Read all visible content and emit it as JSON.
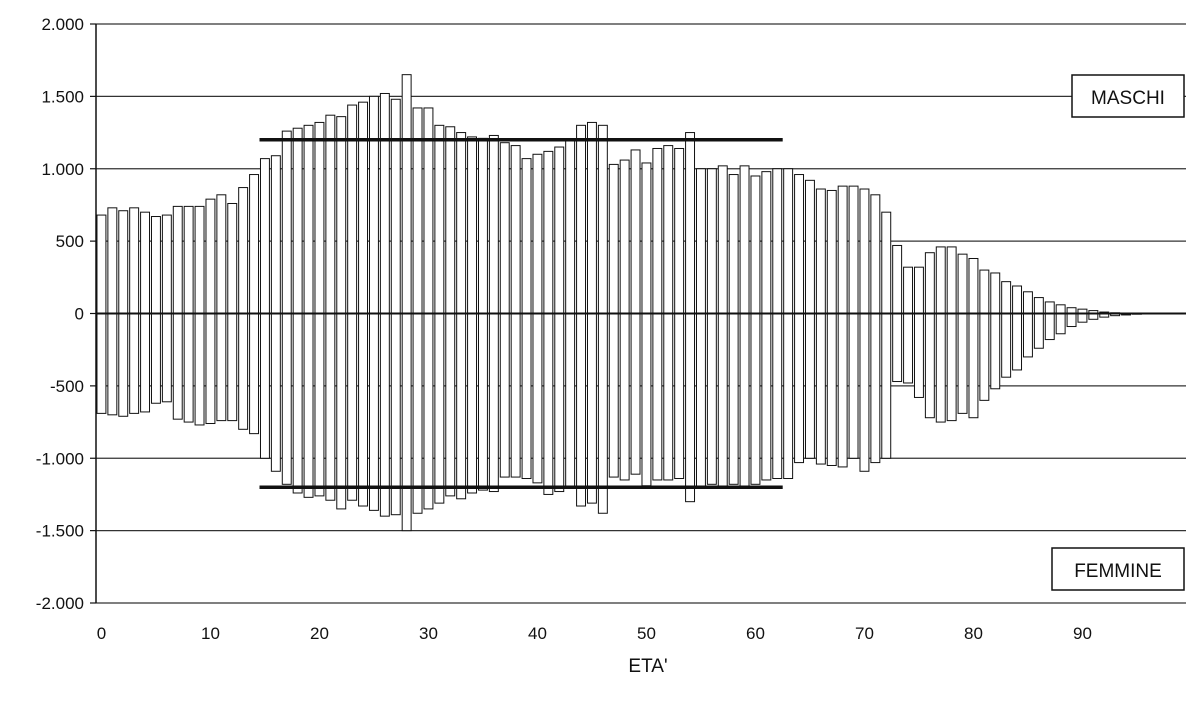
{
  "chart_data": {
    "type": "bar",
    "xlabel": "ETA'",
    "ylabel": "",
    "ylim": [
      -2000,
      2000
    ],
    "xlim": [
      0,
      100
    ],
    "y_ticks": [
      2000,
      1500,
      1000,
      500,
      0,
      -500,
      -1000,
      -1500,
      -2000
    ],
    "y_tick_labels": [
      "2.000",
      "1.500",
      "1.000",
      "500",
      "0",
      "-500",
      "-1.000",
      "-1.500",
      "-2.000"
    ],
    "x_ticks": [
      0,
      10,
      20,
      30,
      40,
      50,
      60,
      70,
      80,
      90
    ],
    "x_tick_labels": [
      "0",
      "10",
      "20",
      "30",
      "40",
      "50",
      "60",
      "70",
      "80",
      "90"
    ],
    "grid": true,
    "legend_labels": [
      {
        "text": "MASCHI",
        "position": "top-right"
      },
      {
        "text": "FEMMINE",
        "position": "bottom-right"
      }
    ],
    "categories": [
      0,
      1,
      2,
      3,
      4,
      5,
      6,
      7,
      8,
      9,
      10,
      11,
      12,
      13,
      14,
      15,
      16,
      17,
      18,
      19,
      20,
      21,
      22,
      23,
      24,
      25,
      26,
      27,
      28,
      29,
      30,
      31,
      32,
      33,
      34,
      35,
      36,
      37,
      38,
      39,
      40,
      41,
      42,
      43,
      44,
      45,
      46,
      47,
      48,
      49,
      50,
      51,
      52,
      53,
      54,
      55,
      56,
      57,
      58,
      59,
      60,
      61,
      62,
      63,
      64,
      65,
      66,
      67,
      68,
      69,
      70,
      71,
      72,
      73,
      74,
      75,
      76,
      77,
      78,
      79,
      80,
      81,
      82,
      83,
      84,
      85,
      86,
      87,
      88,
      89,
      90,
      91,
      92,
      93,
      94,
      95,
      96,
      97,
      98,
      99
    ],
    "series": [
      {
        "name": "MASCHI",
        "values": [
          680,
          730,
          710,
          730,
          700,
          670,
          680,
          740,
          740,
          740,
          790,
          820,
          760,
          870,
          960,
          1070,
          1090,
          1260,
          1280,
          1300,
          1320,
          1370,
          1360,
          1440,
          1460,
          1500,
          1520,
          1480,
          1650,
          1420,
          1420,
          1300,
          1290,
          1250,
          1220,
          1210,
          1230,
          1180,
          1160,
          1070,
          1100,
          1120,
          1150,
          1200,
          1300,
          1320,
          1300,
          1030,
          1060,
          1130,
          1040,
          1140,
          1160,
          1140,
          1250,
          1000,
          1000,
          1020,
          960,
          1020,
          950,
          980,
          1000,
          1000,
          960,
          920,
          860,
          850,
          880,
          880,
          860,
          820,
          700,
          470,
          320,
          320,
          420,
          460,
          460,
          410,
          380,
          300,
          280,
          220,
          190,
          150,
          110,
          80,
          60,
          40,
          30,
          20,
          10,
          5,
          3,
          2,
          1,
          0,
          0,
          0
        ]
      },
      {
        "name": "FEMMINE",
        "values": [
          -690,
          -700,
          -710,
          -690,
          -680,
          -620,
          -610,
          -730,
          -750,
          -770,
          -760,
          -740,
          -740,
          -800,
          -830,
          -1000,
          -1090,
          -1180,
          -1240,
          -1270,
          -1260,
          -1290,
          -1350,
          -1290,
          -1330,
          -1360,
          -1400,
          -1390,
          -1500,
          -1380,
          -1350,
          -1310,
          -1260,
          -1280,
          -1240,
          -1220,
          -1230,
          -1130,
          -1130,
          -1140,
          -1170,
          -1250,
          -1230,
          -1200,
          -1330,
          -1310,
          -1380,
          -1130,
          -1150,
          -1110,
          -1190,
          -1150,
          -1150,
          -1140,
          -1300,
          -1200,
          -1180,
          -1200,
          -1180,
          -1200,
          -1180,
          -1150,
          -1140,
          -1140,
          -1030,
          -1000,
          -1040,
          -1050,
          -1060,
          -1000,
          -1090,
          -1030,
          -1000,
          -470,
          -480,
          -580,
          -720,
          -750,
          -740,
          -690,
          -720,
          -600,
          -520,
          -440,
          -390,
          -300,
          -240,
          -180,
          -140,
          -90,
          -60,
          -40,
          -25,
          -15,
          -10,
          -5,
          -3,
          -1,
          0,
          0
        ]
      }
    ],
    "reference_lines": [
      {
        "value": 1200,
        "x_from": 15,
        "x_to": 63
      },
      {
        "value": -1200,
        "x_from": 15,
        "x_to": 63
      }
    ]
  }
}
